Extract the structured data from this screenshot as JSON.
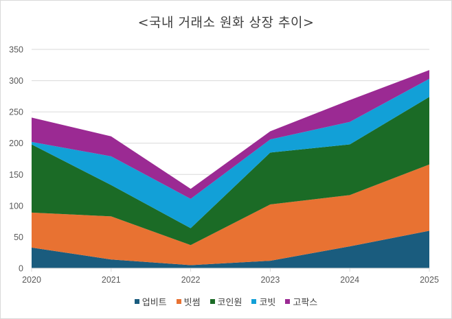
{
  "chart_data": {
    "type": "area",
    "stacked": true,
    "title": "<국내 거래소 원화 상장 추이>",
    "xlabel": "",
    "ylabel": "",
    "categories": [
      "2020",
      "2021",
      "2022",
      "2023",
      "2024",
      "2025"
    ],
    "ylim": [
      0,
      350
    ],
    "yticks": [
      0,
      50,
      100,
      150,
      200,
      250,
      300,
      350
    ],
    "grid": true,
    "legend_position": "bottom",
    "series": [
      {
        "name": "업비트",
        "color": "#1a5c7e",
        "values": [
          33,
          14,
          5,
          12,
          35,
          60
        ]
      },
      {
        "name": "빗썸",
        "color": "#e87232",
        "values": [
          56,
          69,
          32,
          90,
          82,
          106
        ]
      },
      {
        "name": "코인원",
        "color": "#1b6b26",
        "values": [
          109,
          50,
          27,
          83,
          81,
          108
        ]
      },
      {
        "name": "코빗",
        "color": "#12a0d7",
        "values": [
          4,
          46,
          47,
          21,
          36,
          29
        ]
      },
      {
        "name": "고팍스",
        "color": "#9b2a93",
        "values": [
          39,
          32,
          16,
          13,
          35,
          14
        ]
      }
    ]
  }
}
